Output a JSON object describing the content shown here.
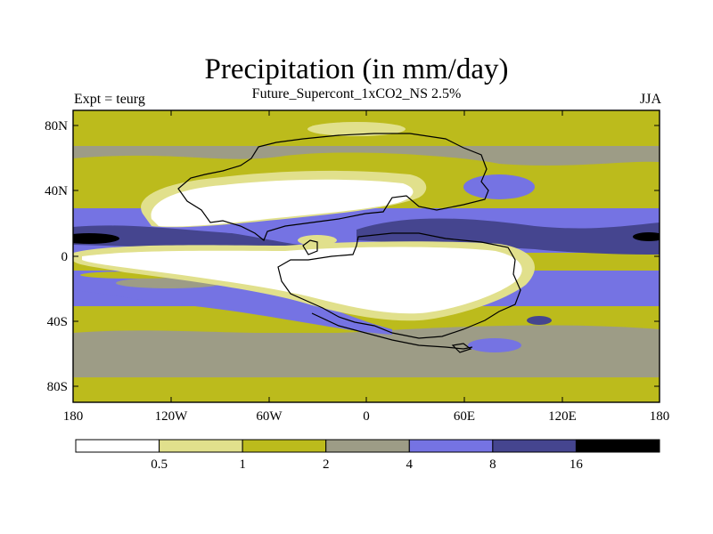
{
  "title": "Precipitation (in mm/day)",
  "subtitle": "Future_Supercont_1xCO2_NS 2.5%",
  "left_label": "Expt = teurg",
  "right_label": "JJA",
  "map": {
    "projection": "cylindrical equidistant",
    "lon_range": [
      -180,
      180
    ],
    "lat_range": [
      -90,
      90
    ],
    "y_ticks": [
      "80N",
      "40N",
      "0",
      "40S",
      "80S"
    ],
    "x_ticks": [
      "180",
      "120W",
      "60W",
      "0",
      "60E",
      "120E",
      "180"
    ]
  },
  "colorbar": {
    "colors": [
      "#ffffff",
      "#e1e08c",
      "#bcbb1c",
      "#9d9c86",
      "#7573e3",
      "#45458f",
      "#000000"
    ],
    "labels": [
      "0.5",
      "1",
      "2",
      "4",
      "8",
      "16"
    ]
  }
}
